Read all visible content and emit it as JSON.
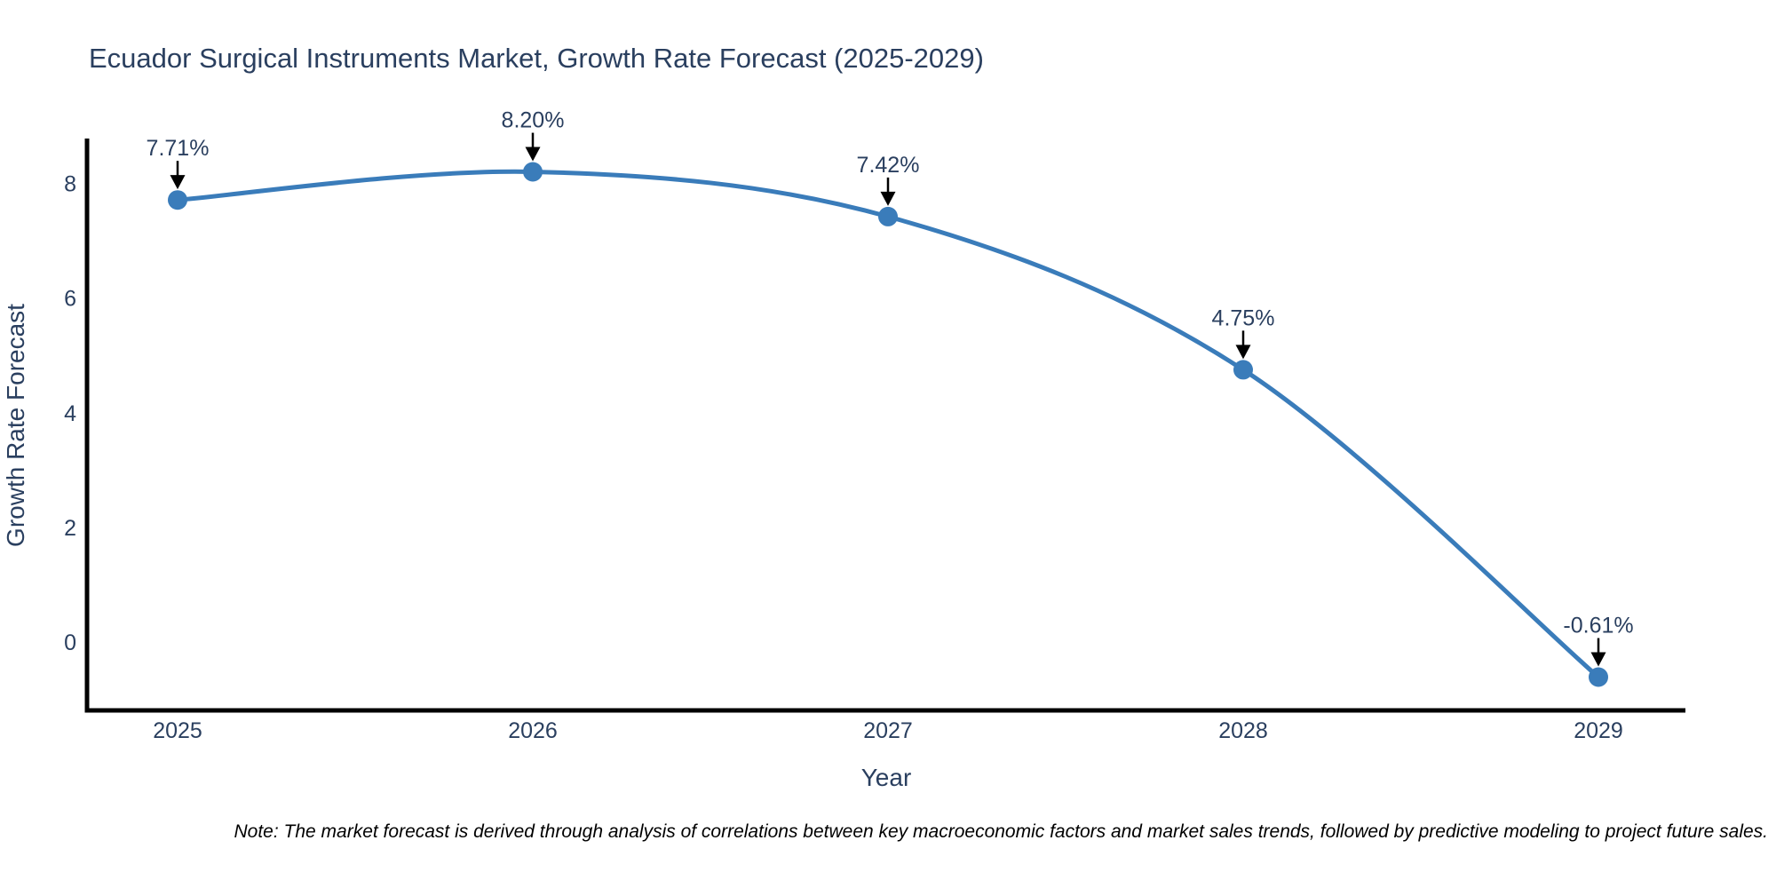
{
  "title": "Ecuador Surgical Instruments Market, Growth Rate Forecast (2025-2029)",
  "note": "Note: The market forecast is derived through analysis of correlations between key macroeconomic factors and market sales trends, followed by predictive modeling to project future sales.",
  "colors": {
    "background": "#ffffff",
    "text": "#2a3f5f",
    "note_text": "#000000",
    "axis": "#000000",
    "arrow": "#000000",
    "line": "#3a7cba",
    "marker": "#3a7cba"
  },
  "chart_data": {
    "type": "line",
    "title": "Ecuador Surgical Instruments Market, Growth Rate Forecast (2025-2029)",
    "xlabel": "Year",
    "ylabel": "Growth Rate Forecast",
    "x": [
      2025,
      2026,
      2027,
      2028,
      2029
    ],
    "values": [
      7.71,
      8.2,
      7.42,
      4.75,
      -0.61
    ],
    "point_labels": [
      "7.71%",
      "8.20%",
      "7.42%",
      "4.75%",
      "-0.61%"
    ],
    "xticks": [
      2025,
      2026,
      2027,
      2028,
      2029
    ],
    "yticks": [
      0,
      2,
      4,
      6,
      8
    ],
    "xlim": [
      2024.745,
      2029.245
    ],
    "ylim": [
      -1.19,
      8.75
    ],
    "grid": false,
    "legend": "none",
    "line_shape": "spline",
    "annotations_arrow_direction": "down"
  }
}
